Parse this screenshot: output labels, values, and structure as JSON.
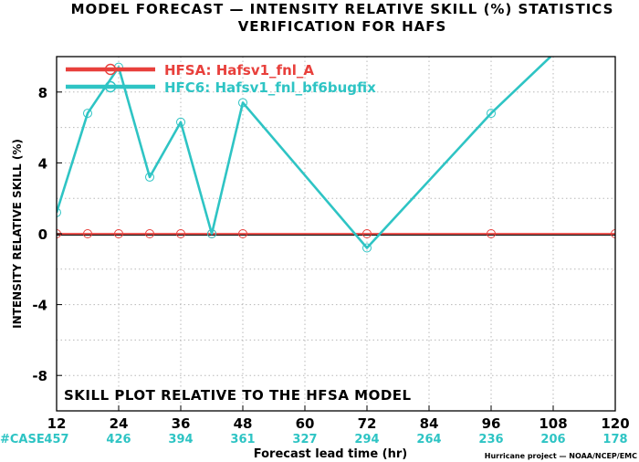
{
  "chart_data": {
    "type": "line",
    "title": "MODEL FORECAST — INTENSITY RELATIVE SKILL (%) STATISTICS",
    "subtitle": "VERIFICATION FOR HAFS",
    "xlabel": "Forecast lead time (hr)",
    "ylabel": "INTENSITY RELATIVE SKILL (%)",
    "xlim": [
      12,
      120
    ],
    "ylim": [
      -10,
      10
    ],
    "xticks": [
      12,
      24,
      36,
      48,
      60,
      72,
      84,
      96,
      108,
      120
    ],
    "yticks": [
      -8,
      -4,
      0,
      4,
      8
    ],
    "grid": true,
    "legend_position": "top-left",
    "annotation": "SKILL PLOT RELATIVE TO THE HFSA MODEL",
    "case_label": "#CASE",
    "cases": [
      {
        "x": 12,
        "n": "457"
      },
      {
        "x": 24,
        "n": "426"
      },
      {
        "x": 36,
        "n": "394"
      },
      {
        "x": 48,
        "n": "361"
      },
      {
        "x": 60,
        "n": "327"
      },
      {
        "x": 72,
        "n": "294"
      },
      {
        "x": 84,
        "n": "264"
      },
      {
        "x": 96,
        "n": "236"
      },
      {
        "x": 108,
        "n": "206"
      },
      {
        "x": 120,
        "n": "178"
      }
    ],
    "credit": "Hurricane project — NOAA/NCEP/EMC",
    "series": [
      {
        "name": "HFSA: Hafsv1_fnl_A",
        "color": "#e8403c",
        "points": [
          [
            12,
            0
          ],
          [
            18,
            0
          ],
          [
            24,
            0
          ],
          [
            30,
            0
          ],
          [
            36,
            0
          ],
          [
            42,
            0
          ],
          [
            48,
            0
          ],
          [
            72,
            0
          ],
          [
            96,
            0
          ],
          [
            120,
            0
          ]
        ],
        "line_end": 120
      },
      {
        "name": "HFC6: Hafsv1_fnl_bf6bugfix",
        "color": "#2ec4c4",
        "points": [
          [
            12,
            1.2
          ],
          [
            18,
            6.8
          ],
          [
            24,
            9.4
          ],
          [
            30,
            3.2
          ],
          [
            36,
            6.3
          ],
          [
            42,
            0.0
          ],
          [
            48,
            7.4
          ],
          [
            72,
            -0.8
          ],
          [
            96,
            6.8
          ]
        ],
        "line_end": [
          107.5,
          10
        ]
      }
    ]
  }
}
